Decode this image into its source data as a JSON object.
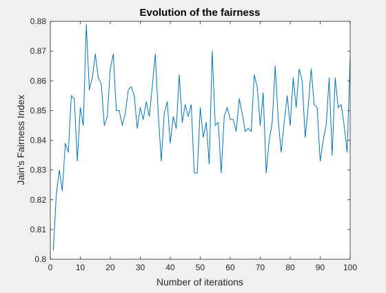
{
  "chart_data": {
    "type": "line",
    "title": "Evolution of the fairness",
    "xlabel": "Number of iterations",
    "ylabel": "Jain's Fairness Index",
    "xlim": [
      0,
      100
    ],
    "ylim": [
      0.8,
      0.88
    ],
    "xticks": [
      0,
      10,
      20,
      30,
      40,
      50,
      60,
      70,
      80,
      90,
      100
    ],
    "xtick_labels": [
      "0",
      "10",
      "20",
      "30",
      "40",
      "50",
      "60",
      "70",
      "80",
      "90",
      "100"
    ],
    "yticks": [
      0.8,
      0.81,
      0.82,
      0.83,
      0.84,
      0.85,
      0.86,
      0.87,
      0.88
    ],
    "ytick_labels": [
      "0.8",
      "0.81",
      "0.82",
      "0.83",
      "0.84",
      "0.85",
      "0.86",
      "0.87",
      "0.88"
    ],
    "grid": false,
    "line_color": "#0072bd",
    "series": [
      {
        "x": [
          1,
          2,
          3,
          4,
          5,
          6,
          7,
          8,
          9,
          10,
          11,
          12,
          13,
          14,
          15,
          16,
          17,
          18,
          19,
          20,
          21,
          22,
          23,
          24,
          25,
          26,
          27,
          28,
          29,
          30,
          31,
          32,
          33,
          34,
          35,
          36,
          37,
          38,
          39,
          40,
          41,
          42,
          43,
          44,
          45,
          46,
          47,
          48,
          49,
          50,
          51,
          52,
          53,
          54,
          55,
          56,
          57,
          58,
          59,
          60,
          61,
          62,
          63,
          64,
          65,
          66,
          67,
          68,
          69,
          70,
          71,
          72,
          73,
          74,
          75,
          76,
          77,
          78,
          79,
          80,
          81,
          82,
          83,
          84,
          85,
          86,
          87,
          88,
          89,
          90,
          91,
          92,
          93,
          94,
          95,
          96,
          97,
          98,
          99,
          100
        ],
        "values": [
          0.803,
          0.822,
          0.83,
          0.823,
          0.839,
          0.836,
          0.855,
          0.854,
          0.833,
          0.851,
          0.845,
          0.879,
          0.857,
          0.861,
          0.869,
          0.861,
          0.859,
          0.845,
          0.848,
          0.864,
          0.869,
          0.85,
          0.85,
          0.845,
          0.849,
          0.857,
          0.858,
          0.855,
          0.844,
          0.851,
          0.847,
          0.853,
          0.848,
          0.858,
          0.869,
          0.849,
          0.833,
          0.849,
          0.853,
          0.839,
          0.848,
          0.844,
          0.862,
          0.846,
          0.852,
          0.848,
          0.852,
          0.829,
          0.829,
          0.851,
          0.841,
          0.846,
          0.832,
          0.87,
          0.845,
          0.846,
          0.829,
          0.848,
          0.851,
          0.847,
          0.847,
          0.843,
          0.854,
          0.849,
          0.843,
          0.844,
          0.843,
          0.862,
          0.858,
          0.845,
          0.856,
          0.829,
          0.84,
          0.846,
          0.865,
          0.847,
          0.836,
          0.846,
          0.855,
          0.845,
          0.861,
          0.851,
          0.864,
          0.86,
          0.841,
          0.851,
          0.864,
          0.852,
          0.851,
          0.833,
          0.84,
          0.845,
          0.861,
          0.835,
          0.861,
          0.851,
          0.852,
          0.845,
          0.836,
          0.868
        ]
      }
    ]
  }
}
